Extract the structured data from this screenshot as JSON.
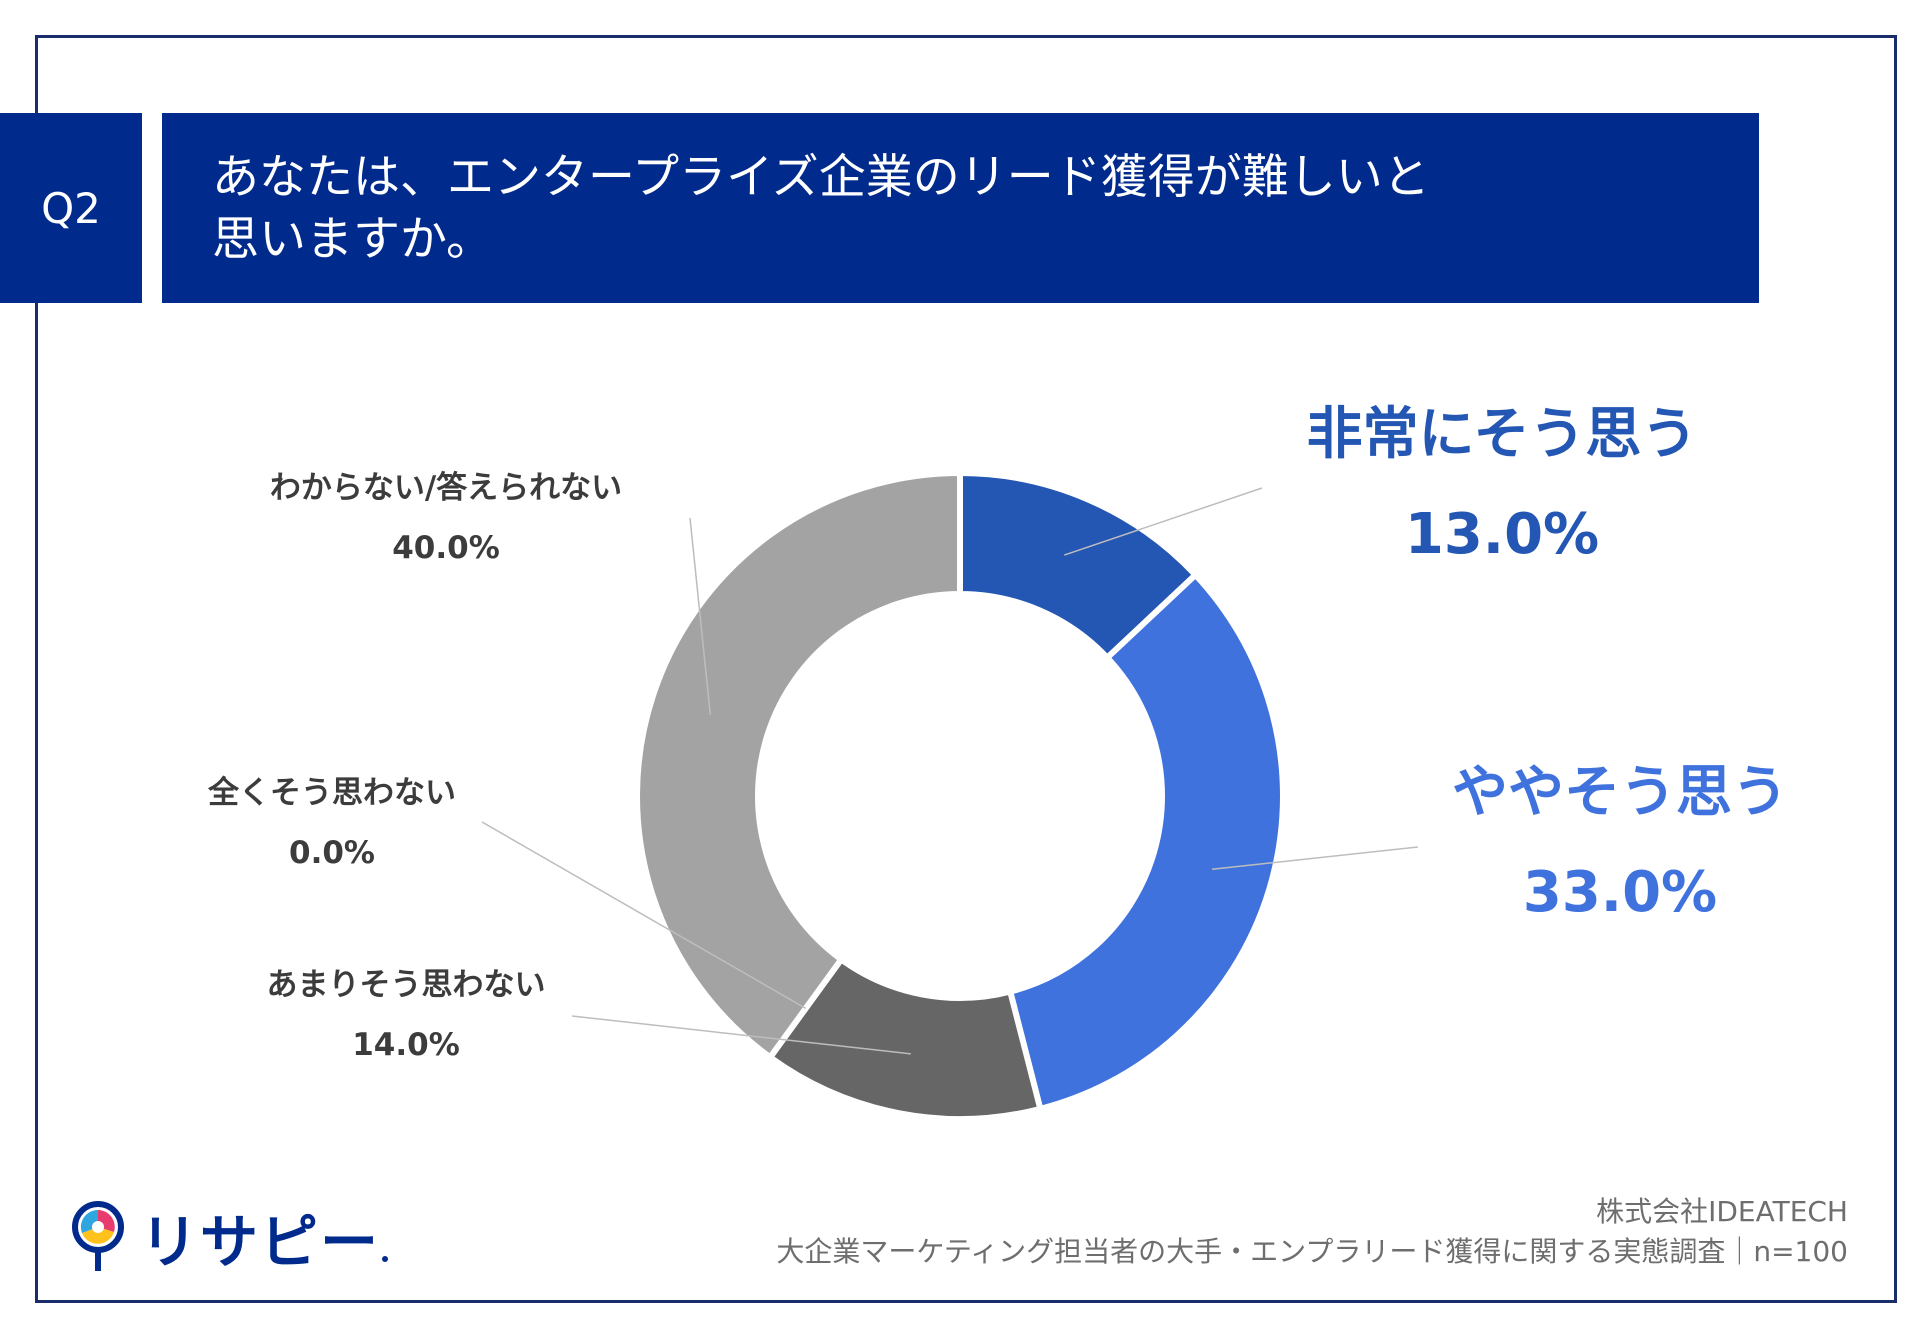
{
  "question": {
    "number": "Q2",
    "lines": [
      "あなたは、エンタープライズ企業のリード獲得が難しいと",
      "思いますか。"
    ]
  },
  "chart_data": {
    "type": "pie",
    "variant": "donut",
    "start": "top",
    "direction": "clockwise",
    "categories": [
      "非常にそう思う",
      "ややそう思う",
      "あまりそう思わない",
      "全くそう思わない",
      "わからない/答えられない"
    ],
    "values": [
      13.0,
      33.0,
      14.0,
      0.0,
      40.0
    ],
    "value_labels": [
      "13.0%",
      "33.0%",
      "14.0%",
      "0.0%",
      "40.0%"
    ],
    "colors": [
      "#2456b3",
      "#3f72dd",
      "#666666",
      "#8f8f8f",
      "#a3a3a3"
    ],
    "sample_size": "n=100"
  },
  "colors": {
    "banner": "#002a8c",
    "frame": "#1a2d6b",
    "leader": "#bdbdbd"
  },
  "footer": {
    "logo_text": "リサピー",
    "company": "株式会社IDEATECH",
    "survey": "大企業マーケティング担当者の大手・エンプラリード獲得に関する実態調査｜n=100"
  }
}
